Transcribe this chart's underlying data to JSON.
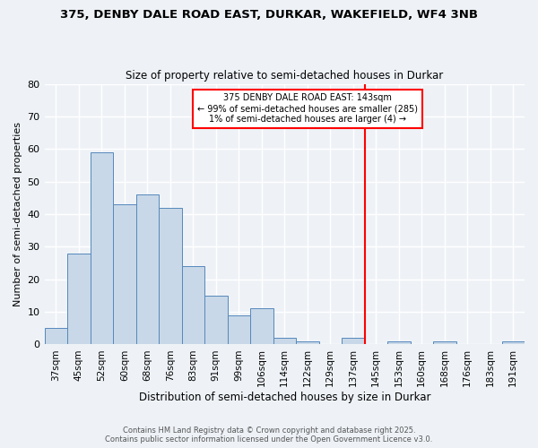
{
  "title": "375, DENBY DALE ROAD EAST, DURKAR, WAKEFIELD, WF4 3NB",
  "subtitle": "Size of property relative to semi-detached houses in Durkar",
  "xlabel": "Distribution of semi-detached houses by size in Durkar",
  "ylabel": "Number of semi-detached properties",
  "bin_labels": [
    "37sqm",
    "45sqm",
    "52sqm",
    "60sqm",
    "68sqm",
    "76sqm",
    "83sqm",
    "91sqm",
    "99sqm",
    "106sqm",
    "114sqm",
    "122sqm",
    "129sqm",
    "137sqm",
    "145sqm",
    "153sqm",
    "160sqm",
    "168sqm",
    "176sqm",
    "183sqm",
    "191sqm"
  ],
  "bar_values": [
    5,
    28,
    59,
    43,
    46,
    42,
    24,
    15,
    9,
    11,
    2,
    1,
    0,
    2,
    0,
    1,
    0,
    1,
    0,
    0,
    1
  ],
  "bar_color": "#c8d8e8",
  "bar_edge_color": "#5588bb",
  "ylim": [
    0,
    80
  ],
  "yticks": [
    0,
    10,
    20,
    30,
    40,
    50,
    60,
    70,
    80
  ],
  "vline_x": 13.5,
  "vline_color": "red",
  "annotation_title": "375 DENBY DALE ROAD EAST: 143sqm",
  "annotation_line1": "← 99% of semi-detached houses are smaller (285)",
  "annotation_line2": "1% of semi-detached houses are larger (4) →",
  "annotation_box_color": "white",
  "annotation_box_edge": "red",
  "footer_line1": "Contains HM Land Registry data © Crown copyright and database right 2025.",
  "footer_line2": "Contains public sector information licensed under the Open Government Licence v3.0.",
  "background_color": "#eef2f7",
  "plot_bg_color": "#eef2f7",
  "grid_color": "white"
}
